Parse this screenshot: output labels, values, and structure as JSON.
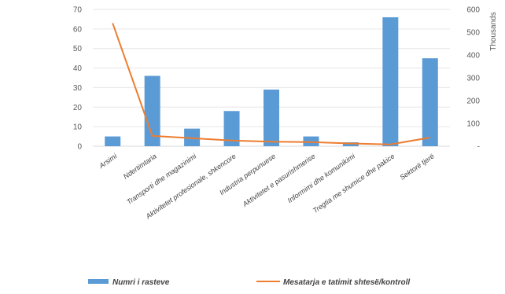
{
  "chart_data": {
    "type": "bar",
    "categories": [
      "Arsimi",
      "Ndertimtaria",
      "Transporti dhe magazinimi",
      "Aktivitetet profesionale, shkencore",
      "Industria perpunuese",
      "Aktivitetet e pasurishmerise",
      "Informimi dhe komunikimi",
      "Tregtia me shumice dhe pakice",
      "Sektorë tjerë"
    ],
    "series": [
      {
        "name": "Numri i rasteve",
        "type": "bar",
        "axis": "left",
        "color": "#5B9BD5",
        "values": [
          5,
          36,
          9,
          18,
          29,
          5,
          2,
          66,
          45
        ]
      },
      {
        "name": "Mesatarja e tatimit shtesë/kontroll",
        "type": "line",
        "axis": "right",
        "color": "#ED7D31",
        "values": [
          540,
          45,
          35,
          25,
          20,
          18,
          12,
          8,
          38
        ]
      }
    ],
    "y_left": {
      "min": 0,
      "max": 70,
      "ticks": [
        0,
        10,
        20,
        30,
        40,
        50,
        60,
        70
      ]
    },
    "y_right": {
      "min": 0,
      "max": 600,
      "ticks": [
        "-",
        "100",
        "200",
        "300",
        "400",
        "500",
        "600"
      ],
      "label": "Thousands"
    },
    "grid": true,
    "legend_position": "bottom"
  }
}
